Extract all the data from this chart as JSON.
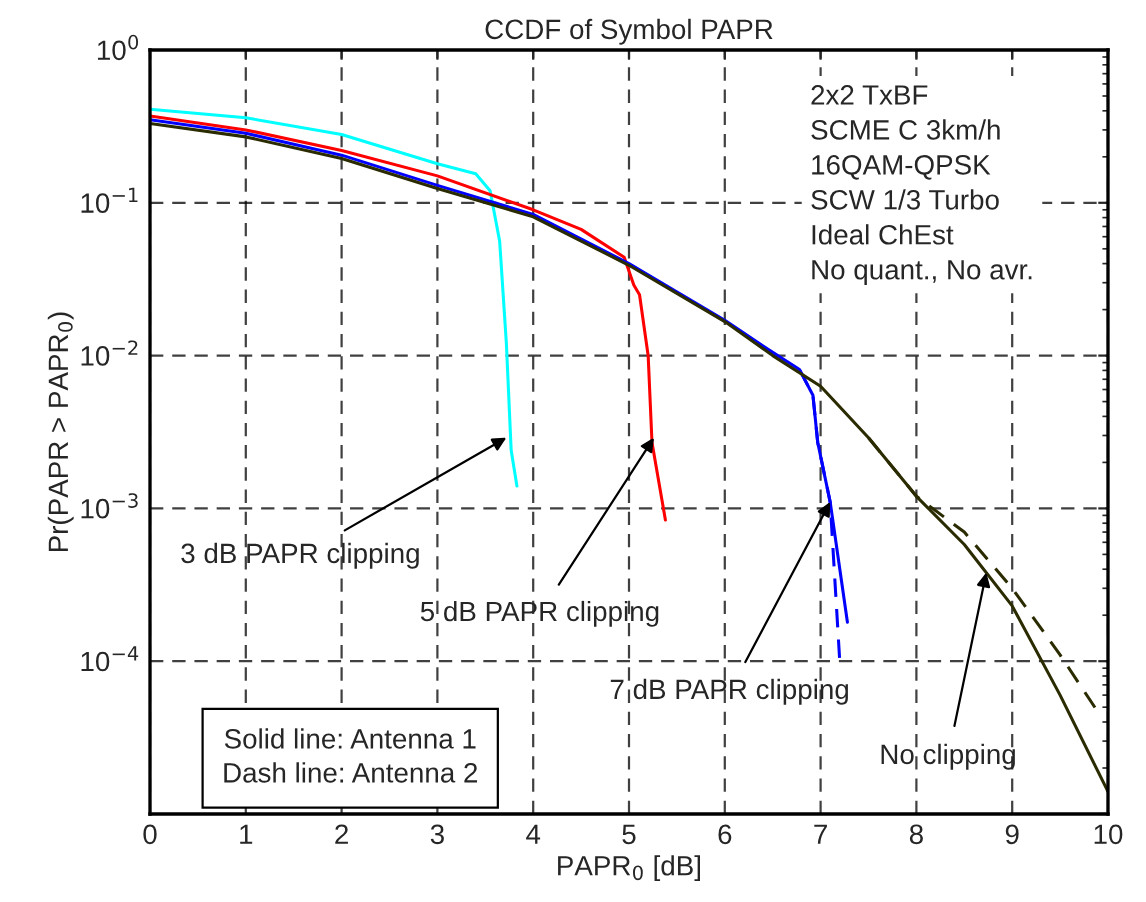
{
  "chart_data": {
    "type": "line",
    "title": "CCDF of Symbol PAPR",
    "xlabel": "PAPR$_{0}$ [dB]",
    "ylabel": "Pr(PAPR > PAPR$_{0}$)",
    "log": "y",
    "grid": true,
    "legend": false,
    "xlim": [
      0,
      10
    ],
    "xticks": [
      0,
      1,
      2,
      3,
      4,
      5,
      6,
      7,
      8,
      9,
      10
    ],
    "ylim": [
      1e-05,
      1
    ],
    "yticks": [
      {
        "value": 1e-05,
        "label": null
      },
      {
        "value": 0.0001,
        "label": "10$^{−4}$"
      },
      {
        "value": 0.001,
        "label": "10$^{−3}$"
      },
      {
        "value": 0.01,
        "label": "10$^{−2}$"
      },
      {
        "value": 0.1,
        "label": "10$^{−1}$"
      },
      {
        "value": 1,
        "label": "10$^{0}$"
      }
    ],
    "series": [
      {
        "color": "#00ffff",
        "line_style": "solid",
        "x": [
          0,
          1,
          2,
          3,
          3.4,
          3.55,
          3.65,
          3.72,
          3.77,
          3.83
        ],
        "values": [
          0.41,
          0.36,
          0.28,
          0.18,
          0.155,
          0.12,
          0.056,
          0.012,
          0.0024,
          0.0014
        ]
      },
      {
        "color": "#ff0000",
        "line_style": "solid",
        "x": [
          0,
          1,
          2,
          3,
          4,
          4.5,
          4.95,
          5.05,
          5.11,
          5.2,
          5.24,
          5.38
        ],
        "values": [
          0.37,
          0.3,
          0.22,
          0.15,
          0.09,
          0.067,
          0.044,
          0.029,
          0.025,
          0.01,
          0.0027,
          0.00084
        ]
      },
      {
        "color": "#0000ff",
        "line_style": "solid",
        "x": [
          0,
          1,
          2,
          3,
          4,
          5,
          6,
          6.5,
          6.78,
          6.92,
          6.97,
          7.1,
          7.28
        ],
        "values": [
          0.35,
          0.285,
          0.205,
          0.13,
          0.084,
          0.04,
          0.017,
          0.0105,
          0.0081,
          0.0055,
          0.0027,
          0.0011,
          0.00018
        ]
      },
      {
        "color": "#0000ff",
        "line_style": "dashed",
        "x": [
          6.78,
          6.92,
          6.97,
          7.1,
          7.2
        ],
        "values": [
          0.0081,
          0.0055,
          0.0027,
          0.0011,
          0.0001
        ]
      },
      {
        "color": "#2b2b00",
        "line_style": "solid",
        "x": [
          0,
          1,
          2,
          3,
          4,
          5,
          6,
          6.5,
          7,
          7.5,
          8,
          8.5,
          9,
          9.5,
          10
        ],
        "values": [
          0.33,
          0.27,
          0.195,
          0.124,
          0.081,
          0.039,
          0.0167,
          0.01,
          0.0063,
          0.0029,
          0.0012,
          0.00058,
          0.00023,
          6e-05,
          1.4e-05
        ]
      },
      {
        "color": "#2b2b00",
        "line_style": "dashed",
        "x": [
          7.5,
          8,
          8.5,
          9,
          9.5,
          9.9
        ],
        "values": [
          0.0029,
          0.0012,
          0.0007,
          0.0003,
          0.00011,
          4.6e-05
        ]
      }
    ],
    "annotations": [
      "2x2 TxBF\nSCME C 3km/h\n16QAM-QPSK\nSCW 1/3 Turbo\nIdeal ChEst\nNo quant., No avr.",
      "Solid line: Antenna 1\nDash line: Antenna 2",
      {
        "text": "3 dB PAPR clipping",
        "x": 3.72,
        "y": 0.0029
      },
      {
        "text": "5 dB PAPR clipping",
        "x": 5.26,
        "y": 0.0029
      },
      {
        "text": "7 dB PAPR clipping",
        "x": 7.1,
        "y": 0.0011
      },
      {
        "text": "No clipping",
        "x": 8.73,
        "y": 0.00038
      }
    ]
  }
}
